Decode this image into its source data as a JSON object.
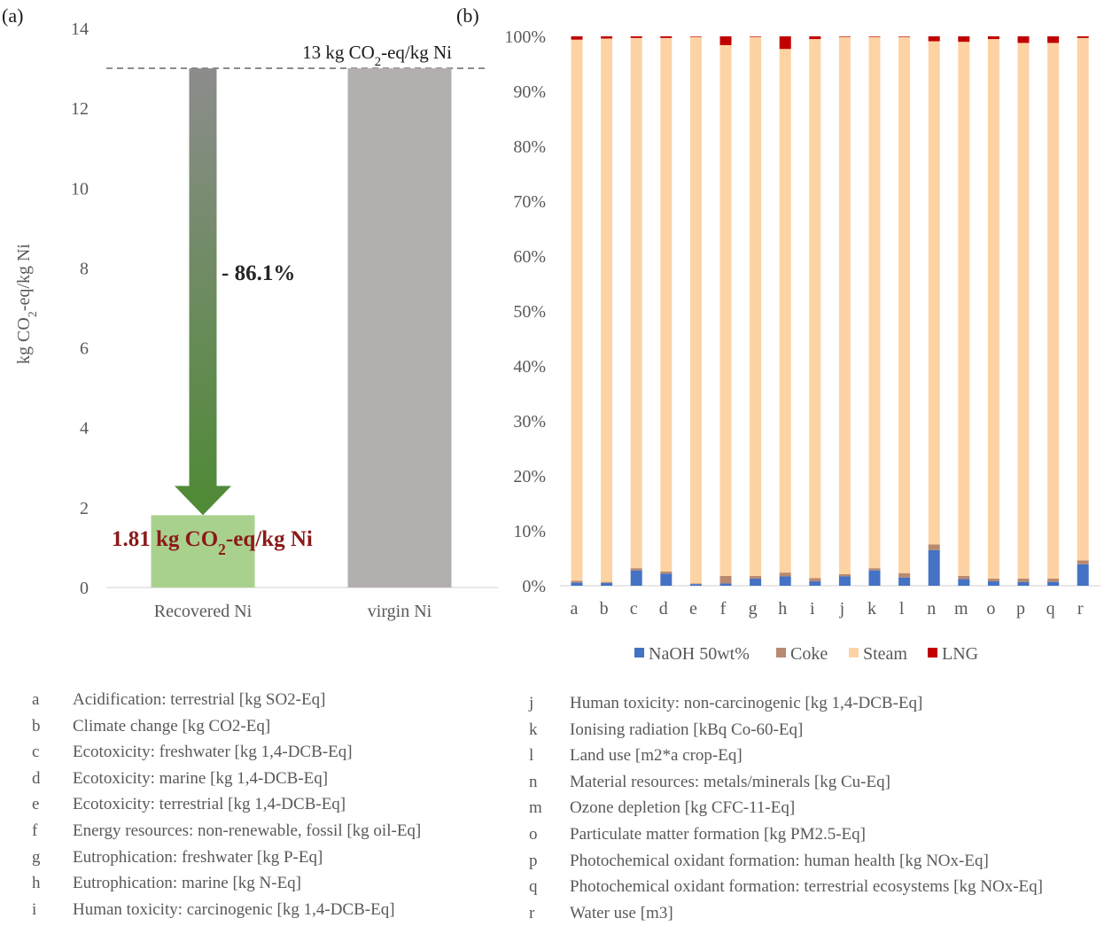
{
  "chart_data": [
    {
      "panel_label": "(a)",
      "type": "bar",
      "categories": [
        "Recovered Ni",
        "virgin Ni"
      ],
      "values": [
        1.81,
        13
      ],
      "ylabel": "kg CO2-eq/kg Ni",
      "ylim": [
        0,
        14
      ],
      "yticks": [
        0,
        2,
        4,
        6,
        8,
        10,
        12,
        14
      ],
      "grid": false,
      "colors": {
        "recovered": "#a9d18e",
        "virgin": "#b3afaf",
        "arrow_top": "#8c8c8c",
        "arrow_bottom": "#4e8a34",
        "value_label": "#8b1a1a"
      },
      "reference_line": {
        "value": 13,
        "label_prefix": "13 kg CO",
        "label_sub": "2",
        "label_suffix": "-eq/kg Ni"
      },
      "reduction_label": "- 86.1%",
      "value_label": {
        "prefix": "1.81 kg CO",
        "sub": "2",
        "suffix": "-eq/kg Ni"
      }
    },
    {
      "panel_label": "(b)",
      "type": "bar",
      "stacked": true,
      "categories": [
        "a",
        "b",
        "c",
        "d",
        "e",
        "f",
        "g",
        "h",
        "i",
        "j",
        "k",
        "l",
        "n",
        "m",
        "o",
        "p",
        "q",
        "r"
      ],
      "ylim": [
        0,
        100
      ],
      "yticks": [
        "0%",
        "10%",
        "20%",
        "30%",
        "40%",
        "50%",
        "60%",
        "70%",
        "80%",
        "90%",
        "100%"
      ],
      "legend_position": "bottom",
      "series": [
        {
          "name": "NaOH 50wt%",
          "color": "#4472c4",
          "values": [
            0.6,
            0.5,
            2.8,
            2.2,
            0.3,
            0.4,
            1.3,
            1.7,
            0.8,
            1.7,
            2.8,
            1.5,
            6.5,
            1.2,
            0.8,
            0.7,
            0.7,
            3.9
          ]
        },
        {
          "name": "Coke",
          "color": "#b98a70",
          "values": [
            0.3,
            0.2,
            0.4,
            0.4,
            0.1,
            1.4,
            0.5,
            0.7,
            0.6,
            0.4,
            0.4,
            0.8,
            1.0,
            0.6,
            0.5,
            0.6,
            0.6,
            0.7
          ]
        },
        {
          "name": "Steam",
          "color": "#fdd3a4",
          "values": [
            98.5,
            98.9,
            96.5,
            97.1,
            99.5,
            96.6,
            98.1,
            95.3,
            98.1,
            97.8,
            96.7,
            97.6,
            91.6,
            97.2,
            98.2,
            97.5,
            97.5,
            95.1
          ]
        },
        {
          "name": "LNG",
          "color": "#c00000",
          "values": [
            0.6,
            0.4,
            0.3,
            0.3,
            0.1,
            1.6,
            0.1,
            2.3,
            0.5,
            0.1,
            0.1,
            0.1,
            0.9,
            1.0,
            0.5,
            1.2,
            1.2,
            0.3
          ]
        }
      ]
    }
  ],
  "legend_left": [
    {
      "key": "a",
      "text": "Acidification: terrestrial [kg SO2-Eq]"
    },
    {
      "key": "b",
      "text": "Climate change [kg CO2-Eq]"
    },
    {
      "key": "c",
      "text": "Ecotoxicity: freshwater [kg 1,4-DCB-Eq]"
    },
    {
      "key": "d",
      "text": "Ecotoxicity: marine [kg 1,4-DCB-Eq]"
    },
    {
      "key": "e",
      "text": "Ecotoxicity: terrestrial [kg 1,4-DCB-Eq]"
    },
    {
      "key": "f",
      "text": "Energy resources: non-renewable, fossil [kg oil-Eq]"
    },
    {
      "key": "g",
      "text": "Eutrophication: freshwater [kg P-Eq]"
    },
    {
      "key": "h",
      "text": "Eutrophication: marine [kg N-Eq]"
    },
    {
      "key": "i",
      "text": "Human toxicity: carcinogenic [kg 1,4-DCB-Eq]"
    }
  ],
  "legend_right": [
    {
      "key": "j",
      "text": "Human toxicity: non-carcinogenic [kg 1,4-DCB-Eq]"
    },
    {
      "key": "k",
      "text": "Ionising radiation [kBq Co-60-Eq]"
    },
    {
      "key": "l",
      "text": "Land use [m2*a crop-Eq]"
    },
    {
      "key": "n",
      "text": "Material resources: metals/minerals [kg Cu-Eq]"
    },
    {
      "key": "m",
      "text": "Ozone depletion [kg CFC-11-Eq]"
    },
    {
      "key": "o",
      "text": "Particulate matter formation [kg PM2.5-Eq]"
    },
    {
      "key": "p",
      "text": "Photochemical oxidant formation: human health [kg NOx-Eq]"
    },
    {
      "key": "q",
      "text": "Photochemical oxidant formation: terrestrial ecosystems [kg NOx-Eq]"
    },
    {
      "key": "r",
      "text": "Water use [m3]"
    }
  ]
}
